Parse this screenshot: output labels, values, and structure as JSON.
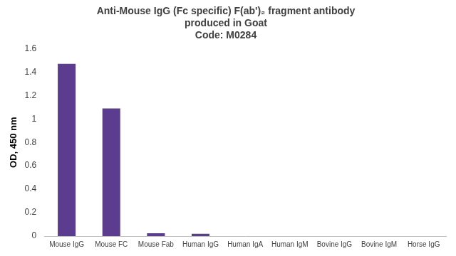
{
  "chart_data": {
    "type": "bar",
    "title": [
      "Anti-Mouse IgG (Fc specific) F(ab')₂ fragment antibody",
      "produced in Goat",
      "Code: M0284"
    ],
    "y_label": "OD, 450 nm",
    "categories": [
      "Mouse IgG",
      "Mouse FC",
      "Mouse Fab",
      "Human IgG",
      "Human IgA",
      "Human IgM",
      "Bovine IgG",
      "Bovine IgM",
      "Horse IgG"
    ],
    "values": [
      1.47,
      1.09,
      0.025,
      0.02,
      0,
      0,
      0,
      0,
      0
    ],
    "color": "#5c3c8f",
    "ylim": [
      0,
      1.6
    ],
    "yticks": [
      0,
      0.2,
      0.4,
      0.6,
      0.8,
      1,
      1.2,
      1.4,
      1.6
    ],
    "grid": false
  }
}
